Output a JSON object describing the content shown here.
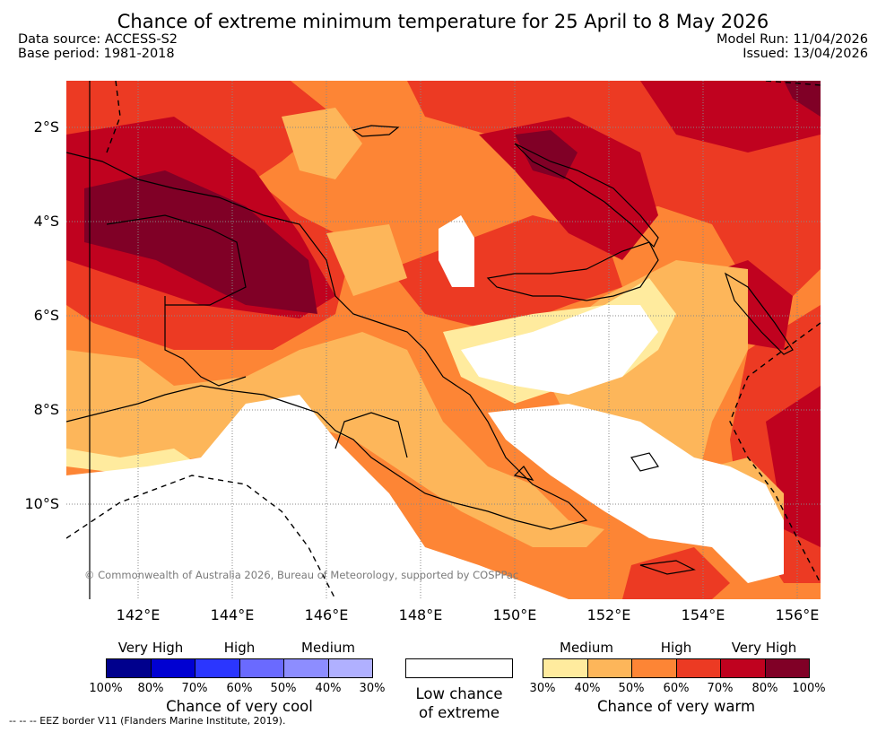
{
  "title": "Chance of extreme minimum temperature for 25 April to 8 May 2026",
  "data_source": "Data source: ACCESS-S2",
  "base_period": "Base period: 1981-2018",
  "model_run": "Model Run: 11/04/2026",
  "issued": "Issued: 13/04/2026",
  "map": {
    "lat_labels": [
      "2°S",
      "4°S",
      "6°S",
      "8°S",
      "10°S"
    ],
    "lon_labels": [
      "142°E",
      "144°E",
      "146°E",
      "148°E",
      "150°E",
      "152°E",
      "154°E",
      "156°E"
    ],
    "copyright": "© Commonwealth of Australia 2026, Bureau of Meteorology, supported by COSPPac"
  },
  "legend": {
    "cool": {
      "headers": [
        "Very High",
        "High",
        "Medium"
      ],
      "colors": [
        "#00008d",
        "#0000d2",
        "#2b36ff",
        "#6a6aff",
        "#8d8dff",
        "#b0b0ff"
      ],
      "ticks": [
        "100%",
        "80%",
        "70%",
        "60%",
        "50%",
        "40%",
        "30%"
      ],
      "caption": "Chance of very cool"
    },
    "low": {
      "color": "#ffffff",
      "caption_line1": "Low chance",
      "caption_line2": "of extreme"
    },
    "warm": {
      "headers": [
        "Medium",
        "High",
        "Very High"
      ],
      "colors": [
        "#ffeb9e",
        "#fdb65a",
        "#fd8535",
        "#ec3a23",
        "#c0021f",
        "#800026"
      ],
      "ticks": [
        "30%",
        "40%",
        "50%",
        "60%",
        "70%",
        "80%",
        "100%"
      ],
      "caption": "Chance of very warm"
    }
  },
  "eez_note": "--  --  -- EEZ border V11 (Flanders Marine Institute, 2019)."
}
